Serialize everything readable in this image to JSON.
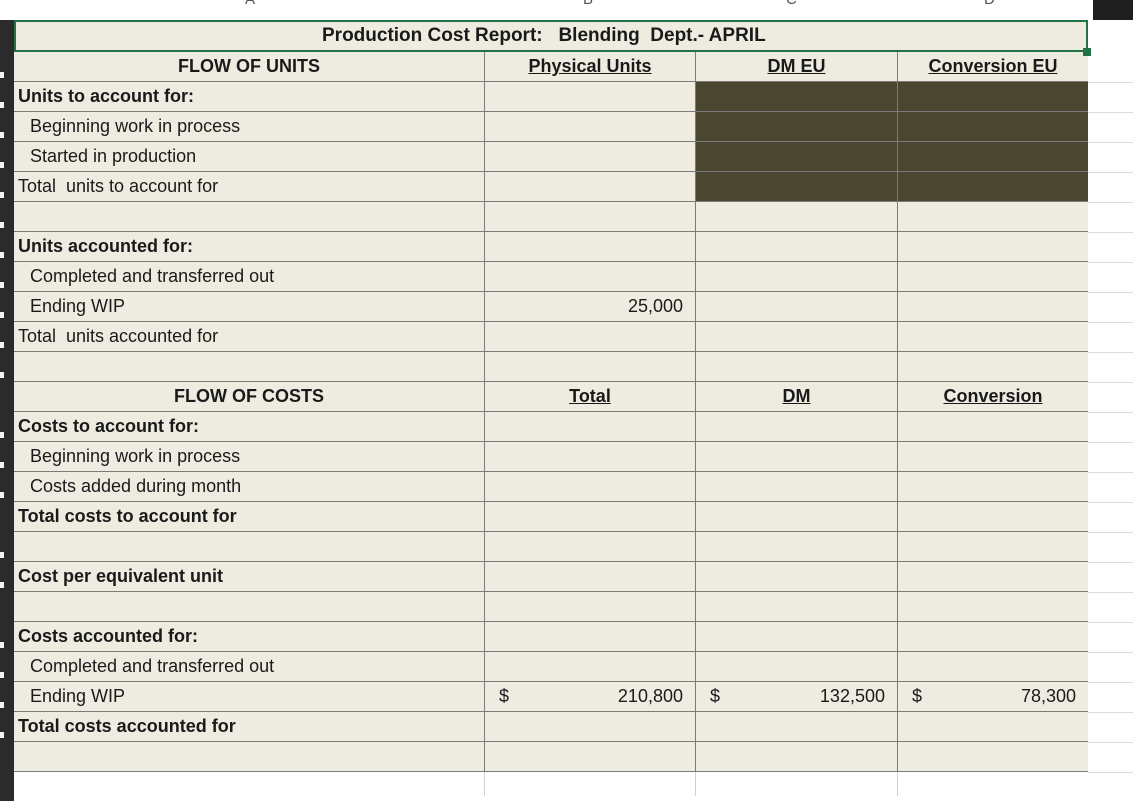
{
  "column_letters": [
    "A",
    "B",
    "C",
    "D"
  ],
  "title": {
    "report": "Production Cost Report:",
    "dept": "Blending  Dept.- APRIL"
  },
  "units_header": {
    "flow": "FLOW OF UNITS",
    "physical": "Physical Units",
    "dm_eu": "DM EU",
    "conv_eu": "Conversion EU"
  },
  "units_to_account": {
    "label": "Units to account for:",
    "beginning": "Beginning work in process",
    "started": "Started in production",
    "total": "Total  units to account for"
  },
  "units_accounted": {
    "label": "Units accounted for:",
    "completed": "Completed and transferred out",
    "ending": "Ending WIP",
    "ending_physical": "25,000",
    "total": "Total  units accounted for"
  },
  "costs_header": {
    "flow": "FLOW OF COSTS",
    "total": "Total",
    "dm": "DM",
    "conversion": "Conversion"
  },
  "costs_to_account": {
    "label": "Costs to account for:",
    "beginning": "Beginning work in process",
    "added": "Costs added during month",
    "total": "Total costs to account for"
  },
  "cost_per_eu": {
    "label": "Cost per equivalent unit"
  },
  "costs_accounted": {
    "label": "Costs accounted for:",
    "completed": "Completed and transferred out",
    "ending": "Ending WIP",
    "currency": "$",
    "ending_total": "210,800",
    "ending_dm": "132,500",
    "ending_conversion": "78,300",
    "total": "Total costs accounted for"
  },
  "colors": {
    "cell_fill": "#eeece1",
    "dark_fill": "#4a4630",
    "selection": "#217346"
  }
}
